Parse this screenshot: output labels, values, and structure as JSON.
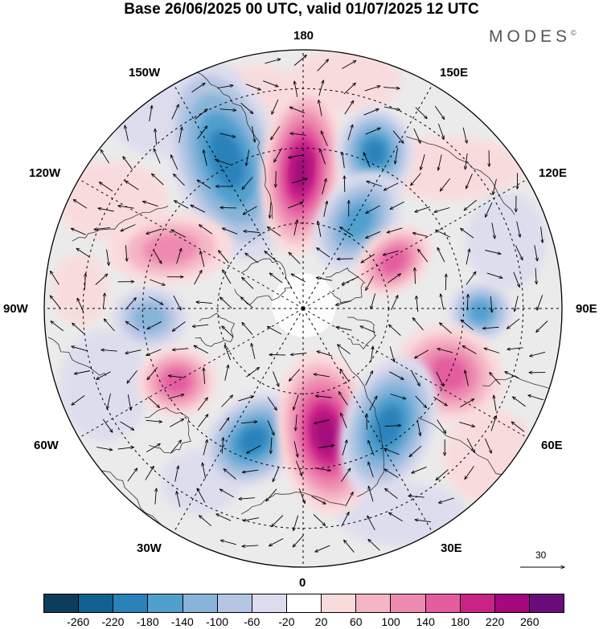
{
  "title": "Base 26/06/2025 00 UTC, valid 01/07/2025 12 UTC",
  "brand": {
    "name": "MODES",
    "mark": "©"
  },
  "longitude_labels": {
    "top": "180",
    "bottom": "0",
    "left": "90W",
    "right": "90E",
    "upper_left_1": "150W",
    "upper_left_2": "120W",
    "lower_left_1": "60W",
    "lower_left_2": "30W",
    "upper_right_1": "150E",
    "upper_right_2": "120E",
    "lower_right_1": "60E",
    "lower_right_2": "30E"
  },
  "vector_scale": {
    "label": "30"
  },
  "colorbar": {
    "colors": [
      "#0d3d5c",
      "#11608f",
      "#2b82bb",
      "#519fcd",
      "#88b4da",
      "#b5c6e3",
      "#dcdcee",
      "#ffffff",
      "#fadbdc",
      "#f5b5c4",
      "#ed8ab0",
      "#e35d9f",
      "#ca2386",
      "#a3087c",
      "#6a0c7a"
    ],
    "tick_labels": [
      "-260",
      "-220",
      "-180",
      "-140",
      "-100",
      "-60",
      "-20",
      "20",
      "60",
      "100",
      "140",
      "180",
      "220",
      "260"
    ]
  },
  "anomaly_centers": [
    {
      "sign": "negative",
      "level": -180
    },
    {
      "sign": "positive",
      "level": 220
    },
    {
      "sign": "negative",
      "level": -180
    },
    {
      "sign": "negative",
      "level": -140
    },
    {
      "sign": "positive",
      "level": 140
    },
    {
      "sign": "negative",
      "level": -140
    },
    {
      "sign": "positive",
      "level": 140
    },
    {
      "sign": "negative",
      "level": -100
    },
    {
      "sign": "positive",
      "level": 100
    },
    {
      "sign": "negative",
      "level": -180
    },
    {
      "sign": "positive",
      "level": 220
    },
    {
      "sign": "negative",
      "level": -180
    },
    {
      "sign": "positive",
      "level": 140
    }
  ]
}
